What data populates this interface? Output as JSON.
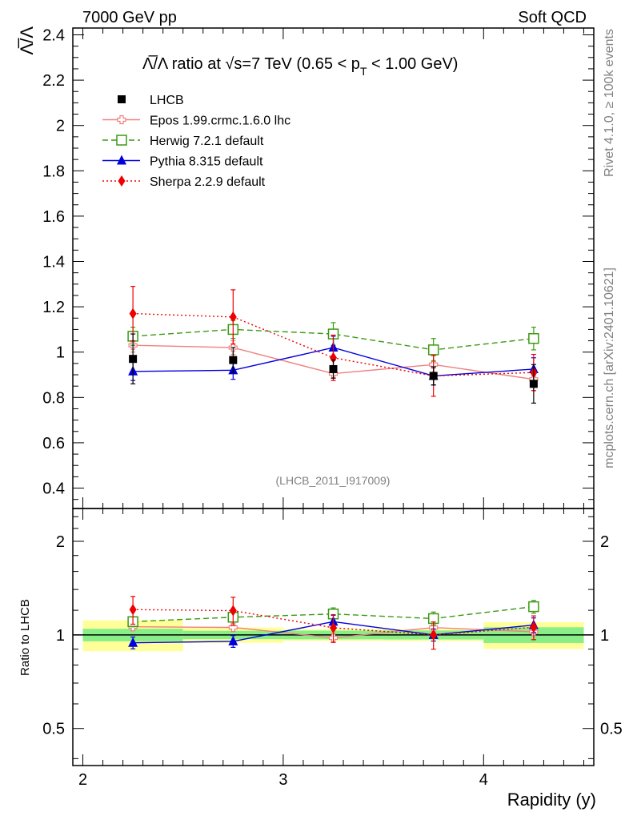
{
  "header": {
    "left": "7000 GeV pp",
    "right": "Soft QCD"
  },
  "side_labels": {
    "rivet": "Rivet 4.1.0, ≥ 100k events",
    "mcplots": "mcplots.cern.ch [arXiv:2401.10621]"
  },
  "chart_data": {
    "type": "line",
    "title_prefix": "Λ̅/Λ ratio at √s=7 TeV (0.65 < p",
    "title_sub": "T",
    "title_suffix": " < 1.00 GeV)",
    "ylabel": "Λ̅/Λ",
    "xlabel": "Rapidity (y)",
    "ratio_ylabel": "Ratio to LHCB",
    "analysis_id": "(LHCB_2011_I917009)",
    "xlim": [
      1.95,
      4.55
    ],
    "ylim": [
      0.31,
      2.43
    ],
    "ratio_ylim": [
      0.38,
      2.55
    ],
    "x_ticks": [
      "2",
      "3",
      "4"
    ],
    "y_ticks": [
      "0.4",
      "0.6",
      "0.8",
      "1",
      "1.2",
      "1.4",
      "1.6",
      "1.8",
      "2",
      "2.2",
      "2.4"
    ],
    "ratio_ticks": [
      "0.5",
      "1",
      "2"
    ],
    "x": [
      2.25,
      2.75,
      3.25,
      3.75,
      4.25
    ],
    "bin_edges": [
      [
        2.0,
        2.5
      ],
      [
        2.5,
        3.0
      ],
      [
        3.0,
        3.5
      ],
      [
        3.5,
        4.0
      ],
      [
        4.0,
        4.5
      ]
    ],
    "data": {
      "name": "LHCB",
      "values": [
        0.97,
        0.965,
        0.925,
        0.895,
        0.86
      ],
      "err_stat": [
        0.045,
        0.03,
        0.03,
        0.03,
        0.05
      ],
      "err_tot": [
        0.11,
        0.055,
        0.04,
        0.04,
        0.085
      ],
      "color": "#000000"
    },
    "series": [
      {
        "name": "Epos 1.99.crmc.1.6.0 lhc",
        "values": [
          1.03,
          1.02,
          0.905,
          0.945,
          0.88
        ],
        "errors": [
          0.03,
          0.03,
          0.03,
          0.04,
          0.05
        ],
        "color": "#f08080",
        "dash": "",
        "marker": "open-cross"
      },
      {
        "name": "Herwig 7.2.1 default",
        "values": [
          1.07,
          1.1,
          1.08,
          1.01,
          1.06
        ],
        "errors": [
          0.04,
          0.04,
          0.05,
          0.05,
          0.05
        ],
        "color": "#3a9a12",
        "dash": "7,4",
        "marker": "open-square"
      },
      {
        "name": "Pythia 8.315 default",
        "values": [
          0.915,
          0.92,
          1.02,
          0.895,
          0.925
        ],
        "errors": [
          0.04,
          0.04,
          0.05,
          0.04,
          0.05
        ],
        "color": "#0000dd",
        "dash": "",
        "marker": "triangle"
      },
      {
        "name": "Sherpa 2.2.9 default",
        "values": [
          1.17,
          1.155,
          0.975,
          0.895,
          0.91
        ],
        "errors": [
          0.12,
          0.12,
          0.1,
          0.09,
          0.08
        ],
        "color": "#ee0000",
        "dash": "2,3",
        "marker": "diamond"
      }
    ],
    "legend_position": "top-left"
  }
}
